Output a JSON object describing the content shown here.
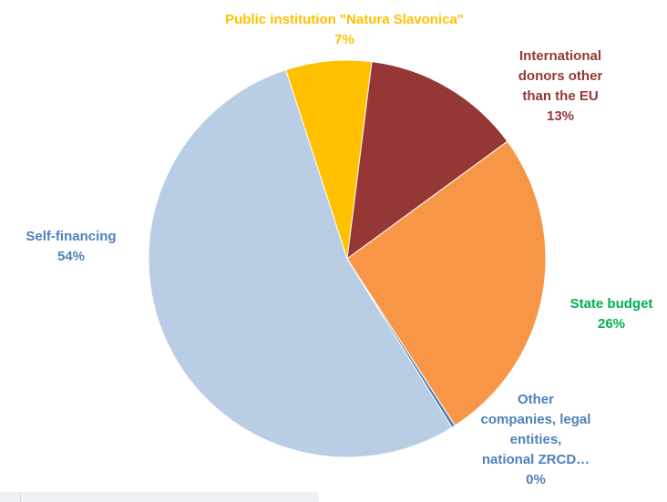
{
  "chart_data": {
    "type": "pie",
    "slices": [
      {
        "label": [
          "Public institution \"Natura Slavonica\""
        ],
        "pct_text": "7%",
        "value": 7,
        "color": "#ffc000",
        "label_color": "#ffc000"
      },
      {
        "label": [
          "International",
          "donors other",
          "than the EU"
        ],
        "pct_text": "13%",
        "value": 13,
        "color": "#953735",
        "label_color": "#953735"
      },
      {
        "label": [
          "State budget"
        ],
        "pct_text": "26%",
        "value": 26,
        "color": "#f79646",
        "label_color": "#00b050"
      },
      {
        "label": [
          "Other",
          "companies, legal",
          "entities,",
          "national ZRCD…"
        ],
        "pct_text": "0%",
        "value": 0.3,
        "color": "#4f81bd",
        "label_color": "#4f81bd"
      },
      {
        "label": [
          "Self-financing"
        ],
        "pct_text": "54%",
        "value": 54,
        "color": "#b9cde5",
        "label_color": "#4f81bd"
      }
    ]
  }
}
